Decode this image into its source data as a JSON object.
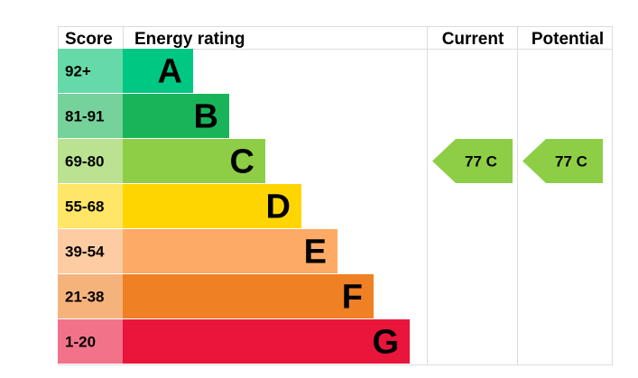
{
  "chart_data": {
    "type": "table",
    "headers": {
      "score": "Score",
      "rating": "Energy rating",
      "current": "Current",
      "potential": "Potential"
    },
    "bands": [
      {
        "score": "92+",
        "letter": "A",
        "color": "#00c781",
        "score_color": "#66d9a8"
      },
      {
        "score": "81-91",
        "letter": "B",
        "color": "#19b459",
        "score_color": "#75d29b"
      },
      {
        "score": "69-80",
        "letter": "C",
        "color": "#8dce46",
        "score_color": "#bbe290"
      },
      {
        "score": "55-68",
        "letter": "D",
        "color": "#ffd500",
        "score_color": "#ffe666"
      },
      {
        "score": "39-54",
        "letter": "E",
        "color": "#fcaa65",
        "score_color": "#fdcca3"
      },
      {
        "score": "21-38",
        "letter": "F",
        "color": "#ef8023",
        "score_color": "#f5b37b"
      },
      {
        "score": "1-20",
        "letter": "G",
        "color": "#e9153b",
        "score_color": "#f27389"
      }
    ],
    "current": {
      "value": 77,
      "band": "C",
      "label": "77  C",
      "color": "#8dce46"
    },
    "potential": {
      "value": 77,
      "band": "C",
      "label": "77  C",
      "color": "#8dce46"
    }
  }
}
